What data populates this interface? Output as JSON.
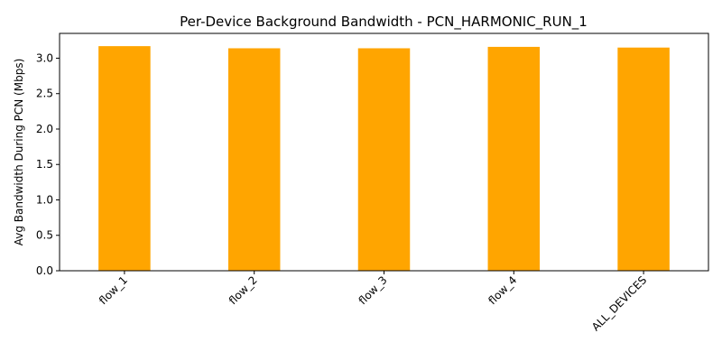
{
  "chart_data": {
    "type": "bar",
    "title": "Per-Device Background Bandwidth - PCN_HARMONIC_RUN_1",
    "xlabel": "",
    "ylabel": "Avg Bandwidth During PCN (Mbps)",
    "categories": [
      "flow_1",
      "flow_2",
      "flow_3",
      "flow_4",
      "ALL_DEVICES"
    ],
    "values": [
      3.17,
      3.14,
      3.14,
      3.16,
      3.15
    ],
    "ylim": [
      0,
      3.35
    ],
    "yticks": [
      0.0,
      0.5,
      1.0,
      1.5,
      2.0,
      2.5,
      3.0
    ],
    "ytick_labels": [
      "0.0",
      "0.5",
      "1.0",
      "1.5",
      "2.0",
      "2.5",
      "3.0"
    ],
    "bar_color": "#FFA500",
    "grid": false,
    "legend": "none"
  }
}
